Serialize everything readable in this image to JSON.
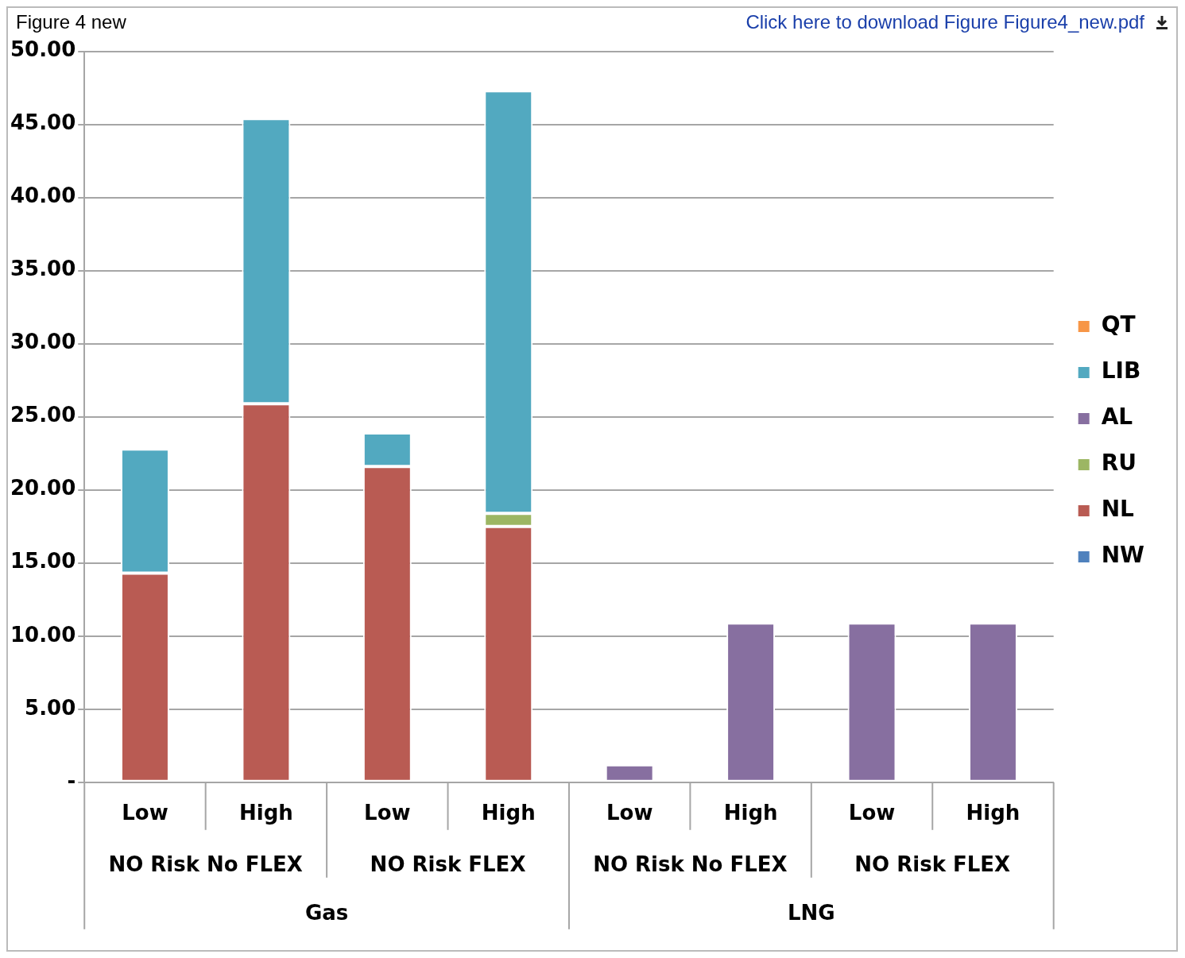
{
  "chart_data": {
    "type": "bar",
    "stacked": true,
    "categories": [
      "Low",
      "High",
      "Low",
      "High",
      "Low",
      "High",
      "Low",
      "High"
    ],
    "series": [
      {
        "name": "NW",
        "color": "#4f81bd",
        "values": [
          null,
          null,
          null,
          null,
          null,
          null,
          null,
          null
        ]
      },
      {
        "name": "NL",
        "color": "#b95b53",
        "values": [
          14.3,
          25.9,
          21.6,
          17.5,
          null,
          null,
          null,
          null
        ]
      },
      {
        "name": "RU",
        "color": "#9cb663",
        "values": [
          null,
          null,
          null,
          0.9,
          null,
          null,
          null,
          null
        ]
      },
      {
        "name": "AL",
        "color": "#876fa0",
        "values": [
          null,
          null,
          null,
          null,
          1.2,
          10.9,
          10.9,
          10.9
        ]
      },
      {
        "name": "LIB",
        "color": "#52a9c0",
        "values": [
          8.5,
          19.5,
          2.3,
          28.9,
          null,
          null,
          null,
          null
        ]
      },
      {
        "name": "QT",
        "color": "#f79646",
        "values": [
          null,
          null,
          null,
          null,
          null,
          null,
          null,
          null
        ]
      }
    ],
    "ylim": [
      0,
      50
    ],
    "yticks": [
      {
        "value": 0,
        "label": "-"
      },
      {
        "value": 5,
        "label": "5.00"
      },
      {
        "value": 10,
        "label": "10.00"
      },
      {
        "value": 15,
        "label": "15.00"
      },
      {
        "value": 20,
        "label": "20.00"
      },
      {
        "value": 25,
        "label": "25.00"
      },
      {
        "value": 30,
        "label": "30.00"
      },
      {
        "value": 35,
        "label": "35.00"
      },
      {
        "value": 40,
        "label": "40.00"
      },
      {
        "value": 45,
        "label": "45.00"
      },
      {
        "value": 50,
        "label": "50.00"
      }
    ],
    "grid": "y",
    "legend": "right",
    "annotations": [
      "Figure 4 new",
      "Click here to download Figure Figure4_new.pdf",
      "NO Risk No FLEX",
      "NO Risk FLEX",
      "NO Risk No FLEX",
      "NO Risk FLEX",
      "Gas",
      "LNG"
    ]
  }
}
